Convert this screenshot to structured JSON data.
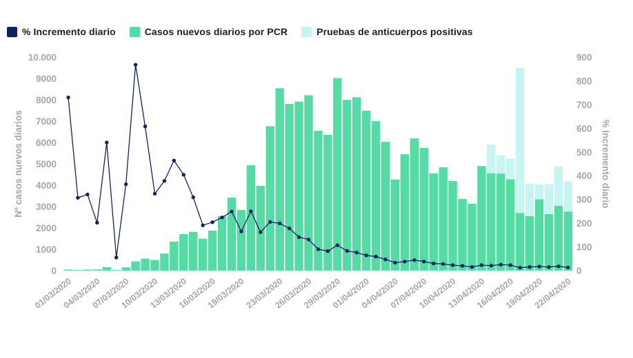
{
  "colors": {
    "background": "#ffffff",
    "line": "#0d2362",
    "pcr_bar": "#55dca4",
    "antibody_bar": "#c8f5f1",
    "axis_text": "#a6a6a6",
    "legend_text": "#181c2e"
  },
  "legend": {
    "items": [
      {
        "label": "% Incremento diario",
        "color": "#0d2362",
        "type": "line"
      },
      {
        "label": "Casos nuevos diarios por PCR",
        "color": "#55dca4",
        "type": "bar"
      },
      {
        "label": "Pruebas de anticuerpos positivas",
        "color": "#c8f5f1",
        "type": "bar"
      }
    ]
  },
  "axes": {
    "left": {
      "title": "Nº casos nuevos diarios",
      "max": 10000,
      "ticks": [
        "0",
        "1000",
        "2000",
        "3000",
        "4000",
        "5000",
        "6000",
        "7000",
        "8000",
        "9000",
        "10.000"
      ]
    },
    "right": {
      "title": "% Incremento diario",
      "max": 900,
      "ticks": [
        "0",
        "100",
        "200",
        "300",
        "400",
        "500",
        "600",
        "700",
        "800",
        "900"
      ]
    },
    "x": {
      "tick_labels": [
        "01/03/2020",
        "04/03/2020",
        "07/03/2020",
        "10/03/2020",
        "13/03/2020",
        "16/03/2020",
        "19/03/2020",
        "23/03/2020",
        "26/03/2020",
        "29/03/2020",
        "01/04/2020",
        "04/04/2020",
        "07/04/2020",
        "10/04/2020",
        "13/04/2020",
        "16/04/2020",
        "19/04/2020",
        "22/04/2020"
      ],
      "tick_day_indices": [
        0,
        3,
        6,
        9,
        12,
        15,
        18,
        22,
        25,
        28,
        31,
        34,
        37,
        40,
        43,
        46,
        49,
        52
      ]
    }
  },
  "chart_data": {
    "type": "bar",
    "subtype": "stacked-bars-plus-line-dual-axis",
    "title": "",
    "xlabel": "",
    "ylabel_left": "Nº casos nuevos diarios",
    "ylabel_right": "% Incremento diario",
    "ylim_left": [
      0,
      10000
    ],
    "ylim_right": [
      0,
      900
    ],
    "grid": false,
    "legend_position": "top-left",
    "categories": [
      "01/03/2020",
      "02/03/2020",
      "03/03/2020",
      "04/03/2020",
      "05/03/2020",
      "06/03/2020",
      "07/03/2020",
      "08/03/2020",
      "09/03/2020",
      "10/03/2020",
      "11/03/2020",
      "12/03/2020",
      "13/03/2020",
      "14/03/2020",
      "15/03/2020",
      "16/03/2020",
      "17/03/2020",
      "18/03/2020",
      "19/03/2020",
      "20/03/2020",
      "21/03/2020",
      "22/03/2020",
      "23/03/2020",
      "24/03/2020",
      "25/03/2020",
      "26/03/2020",
      "27/03/2020",
      "28/03/2020",
      "29/03/2020",
      "30/03/2020",
      "31/03/2020",
      "01/04/2020",
      "02/04/2020",
      "03/04/2020",
      "04/04/2020",
      "05/04/2020",
      "06/04/2020",
      "07/04/2020",
      "08/04/2020",
      "09/04/2020",
      "10/04/2020",
      "11/04/2020",
      "12/04/2020",
      "13/04/2020",
      "14/04/2020",
      "15/04/2020",
      "16/04/2020",
      "17/04/2020",
      "18/04/2020",
      "19/04/2020",
      "20/04/2020",
      "21/04/2020",
      "22/04/2020"
    ],
    "series": [
      {
        "name": "Casos nuevos diarios por PCR",
        "type": "bar",
        "axis": "left",
        "color": "#55dca4",
        "values": [
          50,
          30,
          45,
          55,
          160,
          30,
          150,
          430,
          560,
          495,
          795,
          1355,
          1710,
          1815,
          1495,
          1870,
          2550,
          3420,
          2840,
          4940,
          3970,
          6765,
          8540,
          7810,
          7915,
          8215,
          6550,
          6360,
          9020,
          8000,
          8120,
          7495,
          7010,
          6030,
          4270,
          5450,
          6195,
          5750,
          4560,
          4840,
          4195,
          3360,
          3130,
          4900,
          4560,
          4545,
          4280,
          2700,
          2550,
          3340,
          2645,
          3040,
          2765
        ]
      },
      {
        "name": "Pruebas de anticuerpos positivas",
        "type": "bar-stacked-on-previous",
        "axis": "left",
        "color": "#c8f5f1",
        "values": [
          0,
          0,
          0,
          0,
          0,
          0,
          0,
          0,
          0,
          0,
          0,
          0,
          0,
          0,
          0,
          0,
          0,
          0,
          0,
          0,
          0,
          0,
          0,
          0,
          0,
          0,
          0,
          0,
          0,
          0,
          0,
          0,
          0,
          0,
          0,
          0,
          0,
          0,
          0,
          0,
          0,
          0,
          0,
          0,
          1340,
          855,
          960,
          6800,
          1530,
          690,
          1405,
          1840,
          1420
        ]
      },
      {
        "name": "% Incremento diario",
        "type": "line",
        "axis": "right",
        "color": "#0d2362",
        "values": [
          730,
          307,
          321,
          202,
          540,
          55,
          364,
          868,
          608,
          324,
          378,
          464,
          404,
          309,
          191,
          204,
          224,
          249,
          165,
          250,
          162,
          205,
          199,
          178,
          141,
          131,
          90,
          82,
          107,
          83,
          76,
          64,
          59,
          47,
          33,
          38,
          44,
          38,
          30,
          28,
          23,
          20,
          15,
          23,
          21,
          25,
          23,
          12,
          15,
          17,
          15,
          18,
          13
        ]
      }
    ]
  }
}
